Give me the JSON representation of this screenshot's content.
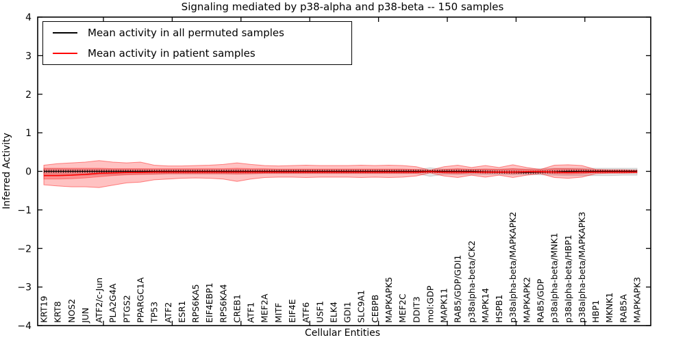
{
  "figure": {
    "title": "Signaling mediated by p38-alpha and p38-beta -- 150 samples",
    "xlabel": "Cellular Entities",
    "ylabel": "Inferred Activity"
  },
  "legend": {
    "items": [
      {
        "label": "Mean activity in all permuted samples",
        "color": "#000000"
      },
      {
        "label": "Mean activity in patient samples",
        "color": "#ff0000"
      }
    ]
  },
  "chart_data": {
    "type": "line",
    "title": "Signaling mediated by p38-alpha and p38-beta -- 150 samples",
    "xlabel": "Cellular Entities",
    "ylabel": "Inferred Activity",
    "ylim": [
      -4,
      4
    ],
    "yticks": [
      -4,
      -3,
      -2,
      -1,
      0,
      1,
      2,
      3,
      4
    ],
    "grid": false,
    "legend_position": "upper left",
    "categories": [
      "KRT19",
      "KRT8",
      "NOS2",
      "JUN",
      "ATF2/c-Jun",
      "PLA2G4A",
      "PTGS2",
      "PPARGC1A",
      "TP53",
      "ATF2",
      "ESR1",
      "RPS6KA5",
      "EIF4EBP1",
      "RPS6KA4",
      "CREB1",
      "ATF1",
      "MEF2A",
      "MITF",
      "EIF4E",
      "ATF6",
      "USF1",
      "ELK4",
      "GDI1",
      "SLC9A1",
      "CEBPB",
      "MAPKAPK5",
      "MEF2C",
      "DDIT3",
      "mol:GDP",
      "MAPK11",
      "RAB5/GDP/GDI1",
      "p38alpha-beta/CK2",
      "MAPK14",
      "HSPB1",
      "p38alpha-beta/MAPKAPK2",
      "MAPKAPK2",
      "RAB5/GDP",
      "p38alpha-beta/MNK1",
      "p38alpha-beta/HBP1",
      "p38alpha-beta/MAPKAPK3",
      "HBP1",
      "MKNK1",
      "RAB5A",
      "MAPKAPK3"
    ],
    "series": [
      {
        "name": "Mean activity in all permuted samples",
        "color": "#000000",
        "values": [
          0,
          0,
          0,
          0,
          0,
          0,
          0,
          0,
          0,
          0,
          0,
          0,
          0,
          0,
          0,
          0,
          0,
          0,
          0,
          0,
          0,
          0,
          0,
          0,
          0,
          0,
          0,
          0,
          0,
          0,
          0,
          0,
          -0.01,
          -0.02,
          -0.02,
          -0.03,
          -0.02,
          -0.01,
          0,
          0,
          0,
          0,
          0,
          0
        ]
      },
      {
        "name": "Mean activity in patient samples",
        "color": "#ff0000",
        "values": [
          -0.11,
          -0.11,
          -0.1,
          -0.08,
          -0.05,
          -0.04,
          -0.03,
          -0.03,
          -0.02,
          -0.02,
          -0.02,
          -0.02,
          -0.02,
          -0.02,
          -0.02,
          -0.02,
          -0.02,
          -0.02,
          -0.02,
          -0.02,
          -0.02,
          -0.02,
          -0.02,
          -0.02,
          -0.02,
          -0.02,
          -0.02,
          -0.02,
          -0.01,
          -0.02,
          -0.02,
          -0.02,
          -0.02,
          -0.02,
          -0.02,
          -0.01,
          -0.01,
          -0.02,
          -0.03,
          -0.02,
          -0.02,
          -0.02,
          -0.02,
          -0.02
        ]
      }
    ],
    "bands": [
      {
        "name": "permuted-samples-range",
        "color": "rgba(0,0,0,0.11)",
        "edge": "rgba(0,0,0,0.15)",
        "upper": [
          0.07,
          0.07,
          0.06,
          0.06,
          0.06,
          0.06,
          0.06,
          0.06,
          0.05,
          0.05,
          0.05,
          0.05,
          0.05,
          0.05,
          0.05,
          0.05,
          0.05,
          0.05,
          0.05,
          0.05,
          0.05,
          0.05,
          0.05,
          0.05,
          0.05,
          0.05,
          0.05,
          0.05,
          0.09,
          0.06,
          0.06,
          0.06,
          0.06,
          0.06,
          0.07,
          0.06,
          0.07,
          0.08,
          0.08,
          0.08,
          0.08,
          0.08,
          0.08,
          0.08
        ],
        "lower": [
          -0.12,
          -0.11,
          -0.1,
          -0.1,
          -0.09,
          -0.09,
          -0.08,
          -0.08,
          -0.08,
          -0.07,
          -0.07,
          -0.07,
          -0.07,
          -0.07,
          -0.07,
          -0.07,
          -0.06,
          -0.06,
          -0.06,
          -0.06,
          -0.06,
          -0.06,
          -0.06,
          -0.06,
          -0.06,
          -0.06,
          -0.06,
          -0.06,
          -0.13,
          -0.08,
          -0.08,
          -0.08,
          -0.08,
          -0.08,
          -0.09,
          -0.08,
          -0.09,
          -0.1,
          -0.11,
          -0.11,
          -0.11,
          -0.11,
          -0.1,
          -0.1
        ]
      },
      {
        "name": "patient-samples-range-outer",
        "color": "rgba(255,30,30,0.27)",
        "edge": "rgba(255,0,0,0.45)",
        "upper": [
          0.16,
          0.2,
          0.22,
          0.24,
          0.28,
          0.24,
          0.22,
          0.24,
          0.16,
          0.14,
          0.14,
          0.15,
          0.16,
          0.18,
          0.22,
          0.18,
          0.15,
          0.14,
          0.15,
          0.16,
          0.15,
          0.15,
          0.15,
          0.16,
          0.15,
          0.16,
          0.15,
          0.12,
          0.03,
          0.12,
          0.16,
          0.1,
          0.15,
          0.1,
          0.17,
          0.1,
          0.05,
          0.16,
          0.17,
          0.15,
          0.05,
          0.04,
          0.04,
          0.03
        ],
        "lower": [
          -0.35,
          -0.38,
          -0.4,
          -0.4,
          -0.42,
          -0.36,
          -0.3,
          -0.28,
          -0.22,
          -0.2,
          -0.18,
          -0.17,
          -0.18,
          -0.2,
          -0.26,
          -0.2,
          -0.16,
          -0.15,
          -0.15,
          -0.16,
          -0.15,
          -0.15,
          -0.15,
          -0.16,
          -0.15,
          -0.16,
          -0.15,
          -0.12,
          -0.04,
          -0.12,
          -0.16,
          -0.1,
          -0.15,
          -0.1,
          -0.16,
          -0.1,
          -0.06,
          -0.16,
          -0.18,
          -0.15,
          -0.06,
          -0.05,
          -0.05,
          -0.04
        ]
      },
      {
        "name": "patient-samples-range-inner",
        "color": "rgba(255,30,30,0.30)",
        "edge": "rgba(255,0,0,0.35)",
        "upper": [
          0.08,
          0.08,
          0.08,
          0.08,
          0.08,
          0.07,
          0.07,
          0.07,
          0.07,
          0.07,
          0.07,
          0.07,
          0.07,
          0.07,
          0.08,
          0.07,
          0.07,
          0.06,
          0.06,
          0.06,
          0.06,
          0.06,
          0.06,
          0.06,
          0.06,
          0.06,
          0.06,
          0.05,
          0.02,
          0.05,
          0.07,
          0.05,
          0.06,
          0.05,
          0.07,
          0.05,
          0.03,
          0.07,
          0.07,
          0.06,
          0.03,
          0.02,
          0.02,
          0.02
        ],
        "lower": [
          -0.2,
          -0.2,
          -0.19,
          -0.17,
          -0.14,
          -0.11,
          -0.09,
          -0.08,
          -0.07,
          -0.06,
          -0.06,
          -0.06,
          -0.06,
          -0.06,
          -0.07,
          -0.06,
          -0.05,
          -0.05,
          -0.05,
          -0.05,
          -0.05,
          -0.05,
          -0.05,
          -0.05,
          -0.05,
          -0.05,
          -0.05,
          -0.05,
          -0.02,
          -0.05,
          -0.06,
          -0.04,
          -0.05,
          -0.04,
          -0.06,
          -0.04,
          -0.03,
          -0.06,
          -0.07,
          -0.06,
          -0.03,
          -0.02,
          -0.02,
          -0.02
        ]
      }
    ]
  }
}
